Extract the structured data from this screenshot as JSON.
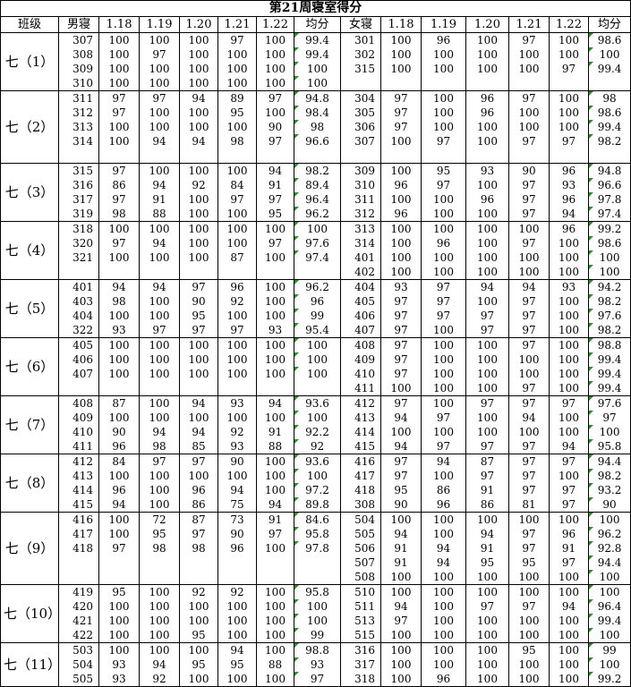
{
  "header": {
    "title": "第21周寝室得分",
    "columns": [
      "班级",
      "男寝",
      "1.18",
      "1.19",
      "1.20",
      "1.21",
      "1.22",
      "均分",
      "女寝",
      "1.18",
      "1.19",
      "1.20",
      "1.21",
      "1.22",
      "均分"
    ]
  },
  "groups": [
    {
      "class": "七（1）",
      "rows": [
        {
          "boys": [
            "307",
            100,
            100,
            100,
            97,
            100,
            99.4
          ],
          "girls": [
            "301",
            100,
            96,
            100,
            97,
            100,
            98.6
          ]
        },
        {
          "boys": [
            "308",
            100,
            97,
            100,
            100,
            100,
            99.4
          ],
          "girls": [
            "302",
            100,
            100,
            100,
            100,
            100,
            100
          ]
        },
        {
          "boys": [
            "309",
            100,
            100,
            100,
            100,
            100,
            100
          ],
          "girls": [
            "315",
            100,
            100,
            100,
            100,
            97,
            99.4
          ]
        },
        {
          "boys": [
            "310",
            100,
            100,
            100,
            100,
            100,
            100
          ],
          "girls": null
        }
      ]
    },
    {
      "class": "七（2）",
      "rows": [
        {
          "boys": [
            "311",
            97,
            97,
            94,
            89,
            97,
            94.8
          ],
          "girls": [
            "304",
            97,
            100,
            96,
            97,
            100,
            98
          ]
        },
        {
          "boys": [
            "312",
            97,
            100,
            100,
            95,
            100,
            98.4
          ],
          "girls": [
            "305",
            97,
            100,
            96,
            100,
            100,
            98.6
          ]
        },
        {
          "boys": [
            "313",
            100,
            100,
            100,
            100,
            90,
            98
          ],
          "girls": [
            "306",
            97,
            100,
            100,
            100,
            100,
            99.4
          ]
        },
        {
          "boys": [
            "314",
            100,
            94,
            94,
            98,
            97,
            96.6
          ],
          "girls": [
            "307",
            100,
            97,
            100,
            97,
            97,
            98.2
          ]
        },
        {
          "boys": null,
          "girls": null
        }
      ]
    },
    {
      "class": "七（3）",
      "rows": [
        {
          "boys": [
            "315",
            97,
            100,
            100,
            100,
            94,
            98.2
          ],
          "girls": [
            "309",
            100,
            95,
            93,
            90,
            96,
            94.8
          ]
        },
        {
          "boys": [
            "316",
            86,
            94,
            92,
            84,
            91,
            89.4
          ],
          "girls": [
            "310",
            96,
            97,
            100,
            97,
            93,
            96.6
          ]
        },
        {
          "boys": [
            "317",
            97,
            91,
            100,
            97,
            97,
            96.4
          ],
          "girls": [
            "311",
            100,
            100,
            96,
            97,
            96,
            97.8
          ]
        },
        {
          "boys": [
            "319",
            98,
            88,
            100,
            100,
            95,
            96.2
          ],
          "girls": [
            "312",
            96,
            100,
            100,
            97,
            94,
            97.4
          ]
        }
      ]
    },
    {
      "class": "七（4）",
      "rows": [
        {
          "boys": [
            "318",
            100,
            100,
            100,
            100,
            100,
            100
          ],
          "girls": [
            "313",
            100,
            100,
            100,
            100,
            96,
            99.2
          ]
        },
        {
          "boys": [
            "320",
            97,
            94,
            100,
            100,
            97,
            97.6
          ],
          "girls": [
            "314",
            100,
            96,
            100,
            97,
            100,
            98.6
          ]
        },
        {
          "boys": [
            "321",
            100,
            100,
            100,
            87,
            100,
            97.4
          ],
          "girls": [
            "401",
            100,
            100,
            100,
            100,
            100,
            100
          ]
        },
        {
          "boys": null,
          "girls": [
            "402",
            100,
            100,
            100,
            100,
            100,
            100
          ]
        }
      ]
    },
    {
      "class": "七（5）",
      "rows": [
        {
          "boys": [
            "401",
            94,
            94,
            97,
            96,
            100,
            96.2
          ],
          "girls": [
            "404",
            93,
            97,
            94,
            94,
            93,
            94.2
          ]
        },
        {
          "boys": [
            "403",
            98,
            100,
            90,
            92,
            100,
            96
          ],
          "girls": [
            "405",
            97,
            97,
            100,
            97,
            100,
            98.2
          ]
        },
        {
          "boys": [
            "404",
            100,
            100,
            95,
            100,
            100,
            99
          ],
          "girls": [
            "406",
            97,
            97,
            97,
            97,
            100,
            97.6
          ]
        },
        {
          "boys": [
            "322",
            93,
            97,
            97,
            97,
            93,
            95.4
          ],
          "girls": [
            "407",
            97,
            100,
            97,
            97,
            100,
            98.2
          ]
        }
      ]
    },
    {
      "class": "七（6）",
      "rows": [
        {
          "boys": [
            "405",
            100,
            100,
            100,
            100,
            100,
            100
          ],
          "girls": [
            "408",
            97,
            100,
            100,
            97,
            100,
            98.8
          ]
        },
        {
          "boys": [
            "406",
            100,
            100,
            100,
            100,
            100,
            100
          ],
          "girls": [
            "409",
            97,
            100,
            100,
            100,
            100,
            99.4
          ]
        },
        {
          "boys": [
            "407",
            100,
            100,
            100,
            100,
            100,
            100
          ],
          "girls": [
            "410",
            97,
            100,
            100,
            100,
            100,
            99.4
          ]
        },
        {
          "boys": null,
          "girls": [
            "411",
            100,
            100,
            100,
            97,
            100,
            99.4
          ]
        }
      ]
    },
    {
      "class": "七（7）",
      "rows": [
        {
          "boys": [
            "408",
            87,
            100,
            94,
            93,
            94,
            93.6
          ],
          "girls": [
            "412",
            97,
            100,
            97,
            97,
            97,
            97.6
          ]
        },
        {
          "boys": [
            "409",
            100,
            100,
            100,
            100,
            100,
            100
          ],
          "girls": [
            "413",
            94,
            97,
            100,
            94,
            100,
            97
          ]
        },
        {
          "boys": [
            "410",
            90,
            94,
            94,
            92,
            91,
            92.2
          ],
          "girls": [
            "414",
            100,
            100,
            100,
            100,
            100,
            100
          ]
        },
        {
          "boys": [
            "411",
            96,
            98,
            85,
            93,
            88,
            92
          ],
          "girls": [
            "415",
            94,
            97,
            97,
            97,
            94,
            95.8
          ]
        }
      ]
    },
    {
      "class": "七（8）",
      "rows": [
        {
          "boys": [
            "412",
            84,
            97,
            97,
            90,
            100,
            93.6
          ],
          "girls": [
            "416",
            97,
            94,
            87,
            97,
            97,
            94.4
          ]
        },
        {
          "boys": [
            "413",
            100,
            100,
            100,
            100,
            100,
            100
          ],
          "girls": [
            "417",
            97,
            100,
            97,
            97,
            100,
            98.2
          ]
        },
        {
          "boys": [
            "414",
            96,
            100,
            96,
            94,
            100,
            97.2
          ],
          "girls": [
            "418",
            95,
            86,
            91,
            97,
            97,
            93.2
          ]
        },
        {
          "boys": [
            "415",
            94,
            100,
            86,
            75,
            94,
            89.8
          ],
          "girls": [
            "308",
            90,
            96,
            86,
            81,
            97,
            90
          ]
        }
      ]
    },
    {
      "class": "七（9）",
      "rows": [
        {
          "boys": [
            "416",
            100,
            72,
            87,
            73,
            91,
            84.6
          ],
          "girls": [
            "504",
            100,
            100,
            100,
            100,
            100,
            100
          ]
        },
        {
          "boys": [
            "417",
            100,
            95,
            97,
            90,
            97,
            95.8
          ],
          "girls": [
            "505",
            94,
            100,
            94,
            97,
            96,
            96.2
          ]
        },
        {
          "boys": [
            "418",
            97,
            98,
            98,
            96,
            100,
            97.8
          ],
          "girls": [
            "506",
            91,
            94,
            91,
            97,
            91,
            92.8
          ]
        },
        {
          "boys": null,
          "girls": [
            "507",
            91,
            94,
            95,
            95,
            97,
            94.4
          ]
        },
        {
          "boys": null,
          "girls": [
            "508",
            100,
            100,
            100,
            100,
            100,
            100
          ]
        }
      ]
    },
    {
      "class": "七（10）",
      "rows": [
        {
          "boys": [
            "419",
            95,
            100,
            92,
            92,
            100,
            95.8
          ],
          "girls": [
            "510",
            100,
            100,
            100,
            100,
            100,
            100
          ]
        },
        {
          "boys": [
            "420",
            100,
            100,
            100,
            100,
            100,
            100
          ],
          "girls": [
            "511",
            94,
            100,
            97,
            97,
            94,
            96.4
          ]
        },
        {
          "boys": [
            "421",
            100,
            100,
            100,
            100,
            100,
            100
          ],
          "girls": [
            "513",
            97,
            100,
            100,
            100,
            100,
            99.4
          ]
        },
        {
          "boys": [
            "422",
            100,
            100,
            95,
            100,
            100,
            99
          ],
          "girls": [
            "515",
            100,
            100,
            100,
            100,
            100,
            100
          ]
        }
      ]
    },
    {
      "class": "七（11）",
      "rows": [
        {
          "boys": [
            "503",
            100,
            100,
            100,
            94,
            100,
            98.8
          ],
          "girls": [
            "316",
            100,
            100,
            100,
            95,
            100,
            99
          ]
        },
        {
          "boys": [
            "504",
            93,
            94,
            95,
            95,
            88,
            93
          ],
          "girls": [
            "317",
            100,
            100,
            100,
            100,
            100,
            100
          ]
        },
        {
          "boys": [
            "505",
            93,
            92,
            100,
            100,
            100,
            97
          ],
          "girls": [
            "318",
            100,
            96,
            100,
            100,
            100,
            99.2
          ]
        }
      ]
    }
  ]
}
